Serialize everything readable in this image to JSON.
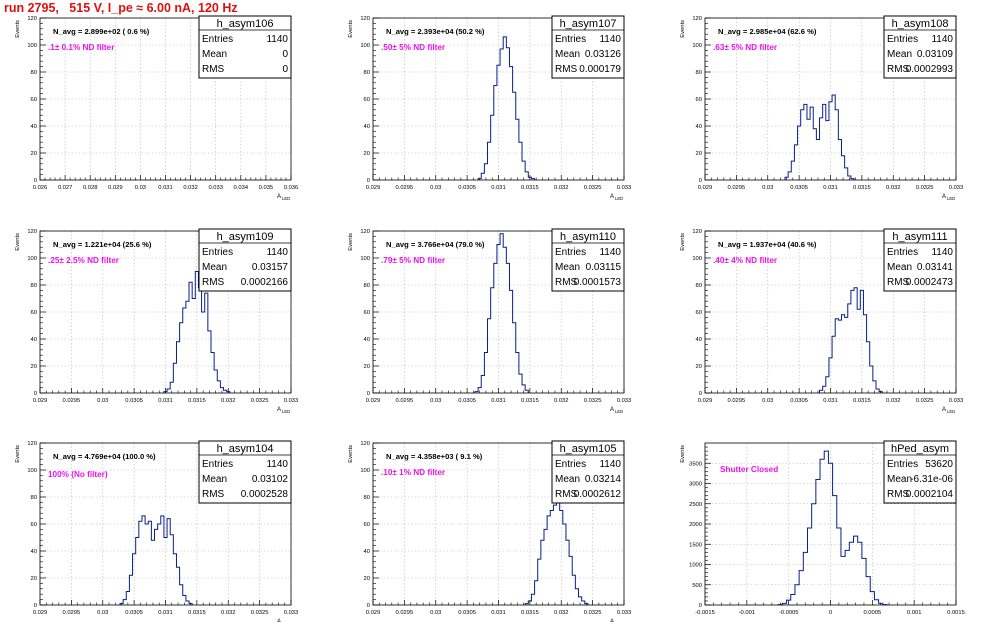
{
  "page": {
    "title": "run 2795,   515 V, I_pe ≈ 6.00 nA, 120 Hz"
  },
  "chart_data": [
    {
      "type": "histogram",
      "name": "h_asym106",
      "stats": {
        "Entries": "1140",
        "Mean": "0",
        "RMS": "0"
      },
      "navg": "N_avg = 2.899e+02 ( 0.6 %)",
      "filter_label": ".1± 0.1% ND filter",
      "xlabel": "A",
      "xlabel_sub": "LED",
      "ylabel": "Events",
      "xlim": [
        0.026,
        0.036
      ],
      "ylim": [
        0,
        120
      ],
      "grid": true,
      "xticks": [
        0.026,
        0.027,
        0.028,
        0.029,
        0.03,
        0.031,
        0.032,
        0.033,
        0.034,
        0.035,
        0.036
      ],
      "xtick_labels": [
        "0.026",
        "0.027",
        "0.028",
        "0.029",
        "0.03",
        "0.031",
        "0.032",
        "0.033",
        "0.034",
        "0.035",
        "0.036"
      ],
      "yticks": [
        0,
        20,
        40,
        60,
        80,
        100,
        120
      ],
      "ytick_labels": [
        "0",
        "20",
        "40",
        "60",
        "80",
        "100",
        "120"
      ],
      "bins": []
    },
    {
      "type": "histogram",
      "name": "h_asym107",
      "stats": {
        "Entries": "1140",
        "Mean": "0.03126",
        "RMS": "0.000179"
      },
      "navg": "N_avg = 2.393e+04 (50.2 %)",
      "filter_label": ".50± 5% ND filter",
      "xlabel": "A",
      "xlabel_sub": "LED",
      "ylabel": "Events",
      "xlim": [
        0.029,
        0.033
      ],
      "ylim": [
        0,
        120
      ],
      "grid": true,
      "xticks": [
        0.029,
        0.0295,
        0.03,
        0.0305,
        0.031,
        0.0315,
        0.032,
        0.0325,
        0.033
      ],
      "xtick_labels": [
        "0.029",
        "0.0295",
        "0.03",
        "0.0305",
        "0.031",
        "0.0315",
        "0.032",
        "0.0325",
        "0.033"
      ],
      "yticks": [
        0,
        20,
        40,
        60,
        80,
        100,
        120
      ],
      "ytick_labels": [
        "0",
        "20",
        "40",
        "60",
        "80",
        "100",
        "120"
      ],
      "bins": [
        [
          0.0307,
          1
        ],
        [
          0.03075,
          5
        ],
        [
          0.0308,
          12
        ],
        [
          0.03085,
          28
        ],
        [
          0.0309,
          48
        ],
        [
          0.03095,
          70
        ],
        [
          0.031,
          85
        ],
        [
          0.03105,
          97
        ],
        [
          0.0311,
          106
        ],
        [
          0.03115,
          98
        ],
        [
          0.0312,
          84
        ],
        [
          0.03125,
          65
        ],
        [
          0.0313,
          45
        ],
        [
          0.03135,
          28
        ],
        [
          0.0314,
          14
        ],
        [
          0.03145,
          6
        ],
        [
          0.0315,
          2
        ],
        [
          0.03155,
          1
        ]
      ]
    },
    {
      "type": "histogram",
      "name": "h_asym108",
      "stats": {
        "Entries": "1140",
        "Mean": "0.03109",
        "RMS": "0.0002993"
      },
      "navg": "N_avg = 2.985e+04 (62.6 %)",
      "filter_label": ".63± 5% ND filter",
      "xlabel": "A",
      "xlabel_sub": "LED",
      "ylabel": "Events",
      "xlim": [
        0.029,
        0.033
      ],
      "ylim": [
        0,
        120
      ],
      "grid": true,
      "xticks": [
        0.029,
        0.0295,
        0.03,
        0.0305,
        0.031,
        0.0315,
        0.032,
        0.0325,
        0.033
      ],
      "xtick_labels": [
        "0.029",
        "0.0295",
        "0.03",
        "0.0305",
        "0.031",
        "0.0315",
        "0.032",
        "0.0325",
        "0.033"
      ],
      "yticks": [
        0,
        20,
        40,
        60,
        80,
        100,
        120
      ],
      "ytick_labels": [
        "0",
        "20",
        "40",
        "60",
        "80",
        "100",
        "120"
      ],
      "bins": [
        [
          0.0303,
          2
        ],
        [
          0.03035,
          6
        ],
        [
          0.0304,
          14
        ],
        [
          0.03045,
          26
        ],
        [
          0.0305,
          40
        ],
        [
          0.03055,
          52
        ],
        [
          0.0306,
          56
        ],
        [
          0.03065,
          45
        ],
        [
          0.0307,
          54
        ],
        [
          0.03075,
          38
        ],
        [
          0.0308,
          30
        ],
        [
          0.03085,
          46
        ],
        [
          0.0309,
          56
        ],
        [
          0.03095,
          44
        ],
        [
          0.031,
          58
        ],
        [
          0.03105,
          63
        ],
        [
          0.0311,
          52
        ],
        [
          0.03115,
          30
        ],
        [
          0.0312,
          18
        ],
        [
          0.03125,
          9
        ],
        [
          0.0313,
          3
        ],
        [
          0.03135,
          1
        ]
      ]
    },
    {
      "type": "histogram",
      "name": "h_asym109",
      "stats": {
        "Entries": "1140",
        "Mean": "0.03157",
        "RMS": "0.0002166"
      },
      "navg": "N_avg = 1.221e+04 (25.6 %)",
      "filter_label": ".25± 2.5% ND filter",
      "xlabel": "A",
      "xlabel_sub": "LED",
      "ylabel": "Events",
      "xlim": [
        0.029,
        0.033
      ],
      "ylim": [
        0,
        120
      ],
      "grid": true,
      "xticks": [
        0.029,
        0.0295,
        0.03,
        0.0305,
        0.031,
        0.0315,
        0.032,
        0.0325,
        0.033
      ],
      "xtick_labels": [
        "0.029",
        "0.0295",
        "0.03",
        "0.0305",
        "0.031",
        "0.0315",
        "0.032",
        "0.0325",
        "0.033"
      ],
      "yticks": [
        0,
        20,
        40,
        60,
        80,
        100,
        120
      ],
      "ytick_labels": [
        "0",
        "20",
        "40",
        "60",
        "80",
        "100",
        "120"
      ],
      "bins": [
        [
          0.031,
          1
        ],
        [
          0.03105,
          3
        ],
        [
          0.0311,
          8
        ],
        [
          0.03115,
          22
        ],
        [
          0.0312,
          38
        ],
        [
          0.03125,
          52
        ],
        [
          0.0313,
          63
        ],
        [
          0.03135,
          68
        ],
        [
          0.0314,
          82
        ],
        [
          0.03145,
          70
        ],
        [
          0.0315,
          90
        ],
        [
          0.03155,
          78
        ],
        [
          0.0316,
          60
        ],
        [
          0.03165,
          74
        ],
        [
          0.0317,
          46
        ],
        [
          0.03175,
          30
        ],
        [
          0.0318,
          17
        ],
        [
          0.03185,
          9
        ],
        [
          0.0319,
          4
        ],
        [
          0.03195,
          2
        ],
        [
          0.032,
          1
        ]
      ]
    },
    {
      "type": "histogram",
      "name": "h_asym110",
      "stats": {
        "Entries": "1140",
        "Mean": "0.03115",
        "RMS": "0.0001573"
      },
      "navg": "N_avg = 3.766e+04 (79.0 %)",
      "filter_label": ".79± 5% ND filter",
      "xlabel": "A",
      "xlabel_sub": "LED",
      "ylabel": "Events",
      "xlim": [
        0.029,
        0.033
      ],
      "ylim": [
        0,
        120
      ],
      "grid": true,
      "xticks": [
        0.029,
        0.0295,
        0.03,
        0.0305,
        0.031,
        0.0315,
        0.032,
        0.0325,
        0.033
      ],
      "xtick_labels": [
        "0.029",
        "0.0295",
        "0.03",
        "0.0305",
        "0.031",
        "0.0315",
        "0.032",
        "0.0325",
        "0.033"
      ],
      "yticks": [
        0,
        20,
        40,
        60,
        80,
        100,
        120
      ],
      "ytick_labels": [
        "0",
        "20",
        "40",
        "60",
        "80",
        "100",
        "120"
      ],
      "bins": [
        [
          0.03065,
          1
        ],
        [
          0.0307,
          4
        ],
        [
          0.03075,
          13
        ],
        [
          0.0308,
          30
        ],
        [
          0.03085,
          55
        ],
        [
          0.0309,
          78
        ],
        [
          0.03095,
          96
        ],
        [
          0.031,
          110
        ],
        [
          0.03105,
          118
        ],
        [
          0.0311,
          108
        ],
        [
          0.03115,
          96
        ],
        [
          0.0312,
          76
        ],
        [
          0.03125,
          52
        ],
        [
          0.0313,
          30
        ],
        [
          0.03135,
          14
        ],
        [
          0.0314,
          6
        ],
        [
          0.03145,
          2
        ]
      ]
    },
    {
      "type": "histogram",
      "name": "h_asym111",
      "stats": {
        "Entries": "1140",
        "Mean": "0.03141",
        "RMS": "0.0002473"
      },
      "navg": "N_avg = 1.937e+04 (40.6 %)",
      "filter_label": ".40± 4% ND filter",
      "xlabel": "A",
      "xlabel_sub": "LED",
      "ylabel": "Events",
      "xlim": [
        0.029,
        0.033
      ],
      "ylim": [
        0,
        120
      ],
      "grid": true,
      "xticks": [
        0.029,
        0.0295,
        0.03,
        0.0305,
        0.031,
        0.0315,
        0.032,
        0.0325,
        0.033
      ],
      "xtick_labels": [
        "0.029",
        "0.0295",
        "0.03",
        "0.0305",
        "0.031",
        "0.0315",
        "0.032",
        "0.0325",
        "0.033"
      ],
      "yticks": [
        0,
        20,
        40,
        60,
        80,
        100,
        120
      ],
      "ytick_labels": [
        "0",
        "20",
        "40",
        "60",
        "80",
        "100",
        "120"
      ],
      "bins": [
        [
          0.03085,
          2
        ],
        [
          0.0309,
          5
        ],
        [
          0.03095,
          12
        ],
        [
          0.031,
          26
        ],
        [
          0.03105,
          42
        ],
        [
          0.0311,
          55
        ],
        [
          0.03115,
          54
        ],
        [
          0.0312,
          58
        ],
        [
          0.03125,
          56
        ],
        [
          0.0313,
          66
        ],
        [
          0.03135,
          76
        ],
        [
          0.0314,
          78
        ],
        [
          0.03145,
          62
        ],
        [
          0.0315,
          76
        ],
        [
          0.03155,
          58
        ],
        [
          0.0316,
          38
        ],
        [
          0.03165,
          20
        ],
        [
          0.0317,
          9
        ],
        [
          0.03175,
          3
        ],
        [
          0.0318,
          1
        ]
      ]
    },
    {
      "type": "histogram",
      "name": "h_asym104",
      "stats": {
        "Entries": "1140",
        "Mean": "0.03102",
        "RMS": "0.0002528"
      },
      "navg": "N_avg = 4.769e+04 (100.0 %)",
      "filter_label": "100% (No filter)",
      "xlabel": "A",
      "xlabel_sub": "LED",
      "ylabel": "Events",
      "xlim": [
        0.029,
        0.033
      ],
      "ylim": [
        0,
        120
      ],
      "grid": true,
      "xticks": [
        0.029,
        0.0295,
        0.03,
        0.0305,
        0.031,
        0.0315,
        0.032,
        0.0325,
        0.033
      ],
      "xtick_labels": [
        "0.029",
        "0.0295",
        "0.03",
        "0.0305",
        "0.031",
        "0.0315",
        "0.032",
        "0.0325",
        "0.033"
      ],
      "yticks": [
        0,
        20,
        40,
        60,
        80,
        100,
        120
      ],
      "ytick_labels": [
        "0",
        "20",
        "40",
        "60",
        "80",
        "100",
        "120"
      ],
      "bins": [
        [
          0.0303,
          1
        ],
        [
          0.03035,
          4
        ],
        [
          0.0304,
          10
        ],
        [
          0.03045,
          22
        ],
        [
          0.0305,
          38
        ],
        [
          0.03055,
          50
        ],
        [
          0.0306,
          62
        ],
        [
          0.03065,
          66
        ],
        [
          0.0307,
          60
        ],
        [
          0.03075,
          62
        ],
        [
          0.0308,
          48
        ],
        [
          0.03085,
          56
        ],
        [
          0.0309,
          60
        ],
        [
          0.03095,
          66
        ],
        [
          0.031,
          50
        ],
        [
          0.03105,
          64
        ],
        [
          0.0311,
          52
        ],
        [
          0.03115,
          38
        ],
        [
          0.0312,
          28
        ],
        [
          0.03125,
          15
        ],
        [
          0.0313,
          7
        ],
        [
          0.03135,
          3
        ],
        [
          0.0314,
          1
        ]
      ]
    },
    {
      "type": "histogram",
      "name": "h_asym105",
      "stats": {
        "Entries": "1140",
        "Mean": "0.03214",
        "RMS": "0.0002612"
      },
      "navg": "N_avg = 4.358e+03 ( 9.1 %)",
      "filter_label": ".10± 1% ND filter",
      "xlabel": "A",
      "xlabel_sub": "LED",
      "ylabel": "Events",
      "xlim": [
        0.029,
        0.033
      ],
      "ylim": [
        0,
        120
      ],
      "grid": true,
      "xticks": [
        0.029,
        0.0295,
        0.03,
        0.0305,
        0.031,
        0.0315,
        0.032,
        0.0325,
        0.033
      ],
      "xtick_labels": [
        "0.029",
        "0.0295",
        "0.03",
        "0.0305",
        "0.031",
        "0.0315",
        "0.032",
        "0.0325",
        "0.033"
      ],
      "yticks": [
        0,
        20,
        40,
        60,
        80,
        100,
        120
      ],
      "ytick_labels": [
        "0",
        "20",
        "40",
        "60",
        "80",
        "100",
        "120"
      ],
      "bins": [
        [
          0.03145,
          1
        ],
        [
          0.0315,
          3
        ],
        [
          0.03155,
          8
        ],
        [
          0.0316,
          18
        ],
        [
          0.03165,
          34
        ],
        [
          0.0317,
          48
        ],
        [
          0.03175,
          56
        ],
        [
          0.0318,
          66
        ],
        [
          0.03185,
          70
        ],
        [
          0.0319,
          74
        ],
        [
          0.03195,
          76
        ],
        [
          0.032,
          70
        ],
        [
          0.03205,
          60
        ],
        [
          0.0321,
          48
        ],
        [
          0.03215,
          36
        ],
        [
          0.0322,
          22
        ],
        [
          0.03225,
          12
        ],
        [
          0.0323,
          6
        ],
        [
          0.03235,
          3
        ],
        [
          0.0324,
          1
        ]
      ]
    },
    {
      "type": "histogram",
      "name": "hPed_asym",
      "stats": {
        "Entries": "53620",
        "Mean": "-6.31e-06",
        "RMS": "0.0002104"
      },
      "navg": "",
      "filter_label": "Shutter Closed",
      "xlabel": "",
      "xlabel_sub": "",
      "ylabel": "Events",
      "xlim": [
        -0.0015,
        0.0015
      ],
      "ylim": [
        0,
        4000
      ],
      "grid": true,
      "xticks": [
        -0.0015,
        -0.001,
        -0.0005,
        0,
        0.0005,
        0.001,
        0.0015
      ],
      "xtick_labels": [
        "-0.0015",
        "-0.001",
        "-0.0005",
        "0",
        "0.0005",
        "0.001",
        "0.0015"
      ],
      "yticks": [
        0,
        500,
        1000,
        1500,
        2000,
        2500,
        3000,
        3500
      ],
      "ytick_labels": [
        "0",
        "500",
        "1000",
        "1500",
        "2000",
        "2500",
        "3000",
        "3500"
      ],
      "bins": [
        [
          -0.0006,
          10
        ],
        [
          -0.00055,
          40
        ],
        [
          -0.0005,
          120
        ],
        [
          -0.00045,
          260
        ],
        [
          -0.0004,
          500
        ],
        [
          -0.00035,
          850
        ],
        [
          -0.0003,
          1300
        ],
        [
          -0.00025,
          1900
        ],
        [
          -0.0002,
          2500
        ],
        [
          -0.00015,
          3100
        ],
        [
          -0.0001,
          3600
        ],
        [
          -5e-05,
          3800
        ],
        [
          0.0,
          3500
        ],
        [
          5e-05,
          2700
        ],
        [
          0.0001,
          1900
        ],
        [
          0.00015,
          1200
        ],
        [
          0.0002,
          1350
        ],
        [
          0.00025,
          1550
        ],
        [
          0.0003,
          1700
        ],
        [
          0.00035,
          1550
        ],
        [
          0.0004,
          1150
        ],
        [
          0.00045,
          700
        ],
        [
          0.0005,
          330
        ],
        [
          0.00055,
          130
        ],
        [
          0.0006,
          40
        ],
        [
          0.00065,
          10
        ]
      ]
    }
  ]
}
